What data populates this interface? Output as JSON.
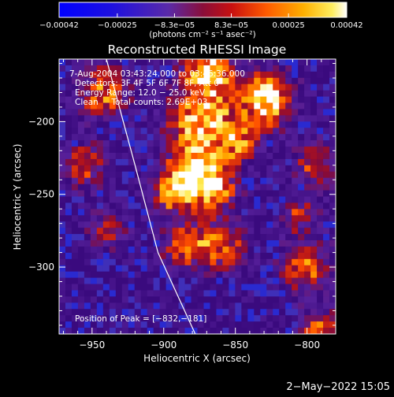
{
  "chart_data": {
    "type": "heatmap",
    "title": "Reconstructed RHESSI Image",
    "xlabel": "Heliocentric X (arcsec)",
    "ylabel": "Heliocentric Y (arcsec)",
    "xlim": [
      -973,
      -780
    ],
    "ylim": [
      -346,
      -157
    ],
    "x_ticks": [
      -950,
      -900,
      -850,
      -800
    ],
    "x_tick_labels": [
      "−950",
      "−900",
      "−850",
      "−800"
    ],
    "y_ticks": [
      -200,
      -250,
      -300
    ],
    "y_tick_labels": [
      "−200",
      "−250",
      "−300"
    ],
    "colorbar": {
      "range": [
        -0.00042,
        0.00042
      ],
      "tick_values": [
        -0.00042,
        -0.00025,
        -8.3e-05,
        8.3e-05,
        0.00025,
        0.00042
      ],
      "tick_labels": [
        "−0.00042",
        "−0.00025",
        "−8.3e−05",
        "8.3e−05",
        "0.00025",
        "0.00042"
      ],
      "unit_label": "(photons cm⁻² s⁻¹ asec⁻²)"
    },
    "annotations": [
      "7-Aug-2004 03:43:24.000 to 03:46:36.000",
      "Detectors: 3F 4F 5F 6F 7F 8F, Att 0",
      "Energy Range: 12.0 − 25.0 keV",
      "Clean     Total counts: 2.69E+03"
    ],
    "peak_label": "Position of Peak = [−832,−181]",
    "peak": [
      -832,
      -181
    ],
    "hotspots": [
      {
        "x": -828,
        "y": -185,
        "intensity": 1.0,
        "spread": 12
      },
      {
        "x": -868,
        "y": -165,
        "intensity": 0.85,
        "spread": 12
      },
      {
        "x": -872,
        "y": -200,
        "intensity": 0.9,
        "spread": 16
      },
      {
        "x": -880,
        "y": -235,
        "intensity": 0.8,
        "spread": 12
      },
      {
        "x": -865,
        "y": -245,
        "intensity": 0.7,
        "spread": 11
      },
      {
        "x": -893,
        "y": -250,
        "intensity": 0.65,
        "spread": 10
      },
      {
        "x": -885,
        "y": -285,
        "intensity": 0.7,
        "spread": 10
      },
      {
        "x": -860,
        "y": -285,
        "intensity": 0.6,
        "spread": 11
      },
      {
        "x": -942,
        "y": -180,
        "intensity": 0.6,
        "spread": 12
      },
      {
        "x": -955,
        "y": -230,
        "intensity": 0.5,
        "spread": 10
      },
      {
        "x": -800,
        "y": -300,
        "intensity": 0.55,
        "spread": 12
      },
      {
        "x": -795,
        "y": -230,
        "intensity": 0.45,
        "spread": 10
      },
      {
        "x": -790,
        "y": -345,
        "intensity": 0.55,
        "spread": 10
      },
      {
        "x": -805,
        "y": -265,
        "intensity": 0.45,
        "spread": 8
      },
      {
        "x": -940,
        "y": -275,
        "intensity": 0.4,
        "spread": 9
      },
      {
        "x": -848,
        "y": -215,
        "intensity": 0.5,
        "spread": 9
      }
    ],
    "limb_curve": [
      [
        -940,
        -157
      ],
      [
        -920,
        -230
      ],
      [
        -904,
        -290
      ],
      [
        -878,
        -346
      ]
    ],
    "grid": false
  },
  "timestamp": "2−May−2022 15:05",
  "colors": {
    "background": "#000000",
    "colormap": [
      "#0000ff",
      "#3a0a7e",
      "#56209a",
      "#b81418",
      "#ff5000",
      "#ffc000",
      "#ffffff"
    ]
  }
}
